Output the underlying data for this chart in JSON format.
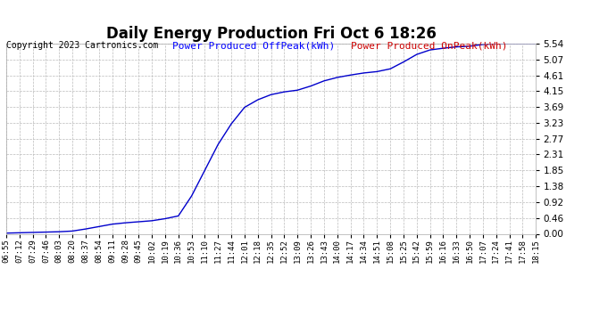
{
  "title": "Daily Energy Production Fri Oct 6 18:26",
  "copyright": "Copyright 2023 Cartronics.com",
  "legend_offpeak": "Power Produced OffPeak(kWh)",
  "legend_onpeak": "Power Produced OnPeak(kWh)",
  "offpeak_color": "#0000ff",
  "onpeak_color": "#cc0000",
  "line_color": "#0000cc",
  "background_color": "#ffffff",
  "grid_color": "#bbbbbb",
  "yticks": [
    0.0,
    0.46,
    0.92,
    1.38,
    1.85,
    2.31,
    2.77,
    3.23,
    3.69,
    4.15,
    4.61,
    5.07,
    5.54
  ],
  "ylim": [
    0.0,
    5.54
  ],
  "x_labels": [
    "06:55",
    "07:12",
    "07:29",
    "07:46",
    "08:03",
    "08:20",
    "08:37",
    "08:54",
    "09:11",
    "09:28",
    "09:45",
    "10:02",
    "10:19",
    "10:36",
    "10:53",
    "11:10",
    "11:27",
    "11:44",
    "12:01",
    "12:18",
    "12:35",
    "12:52",
    "13:09",
    "13:26",
    "13:43",
    "14:00",
    "14:17",
    "14:34",
    "14:51",
    "15:08",
    "15:25",
    "15:42",
    "15:59",
    "16:16",
    "16:33",
    "16:50",
    "17:07",
    "17:24",
    "17:41",
    "17:58",
    "18:15"
  ],
  "y_values": [
    0.02,
    0.03,
    0.04,
    0.05,
    0.06,
    0.08,
    0.14,
    0.21,
    0.28,
    0.32,
    0.35,
    0.38,
    0.44,
    0.52,
    1.1,
    1.85,
    2.6,
    3.2,
    3.68,
    3.9,
    4.05,
    4.13,
    4.18,
    4.3,
    4.45,
    4.55,
    4.62,
    4.68,
    4.72,
    4.8,
    5.0,
    5.22,
    5.35,
    5.4,
    5.44,
    5.46,
    5.51,
    5.53,
    5.54,
    5.54,
    5.54
  ],
  "title_fontsize": 12,
  "copyright_fontsize": 7,
  "legend_fontsize": 8,
  "tick_fontsize": 6.5,
  "ytick_fontsize": 7.5
}
